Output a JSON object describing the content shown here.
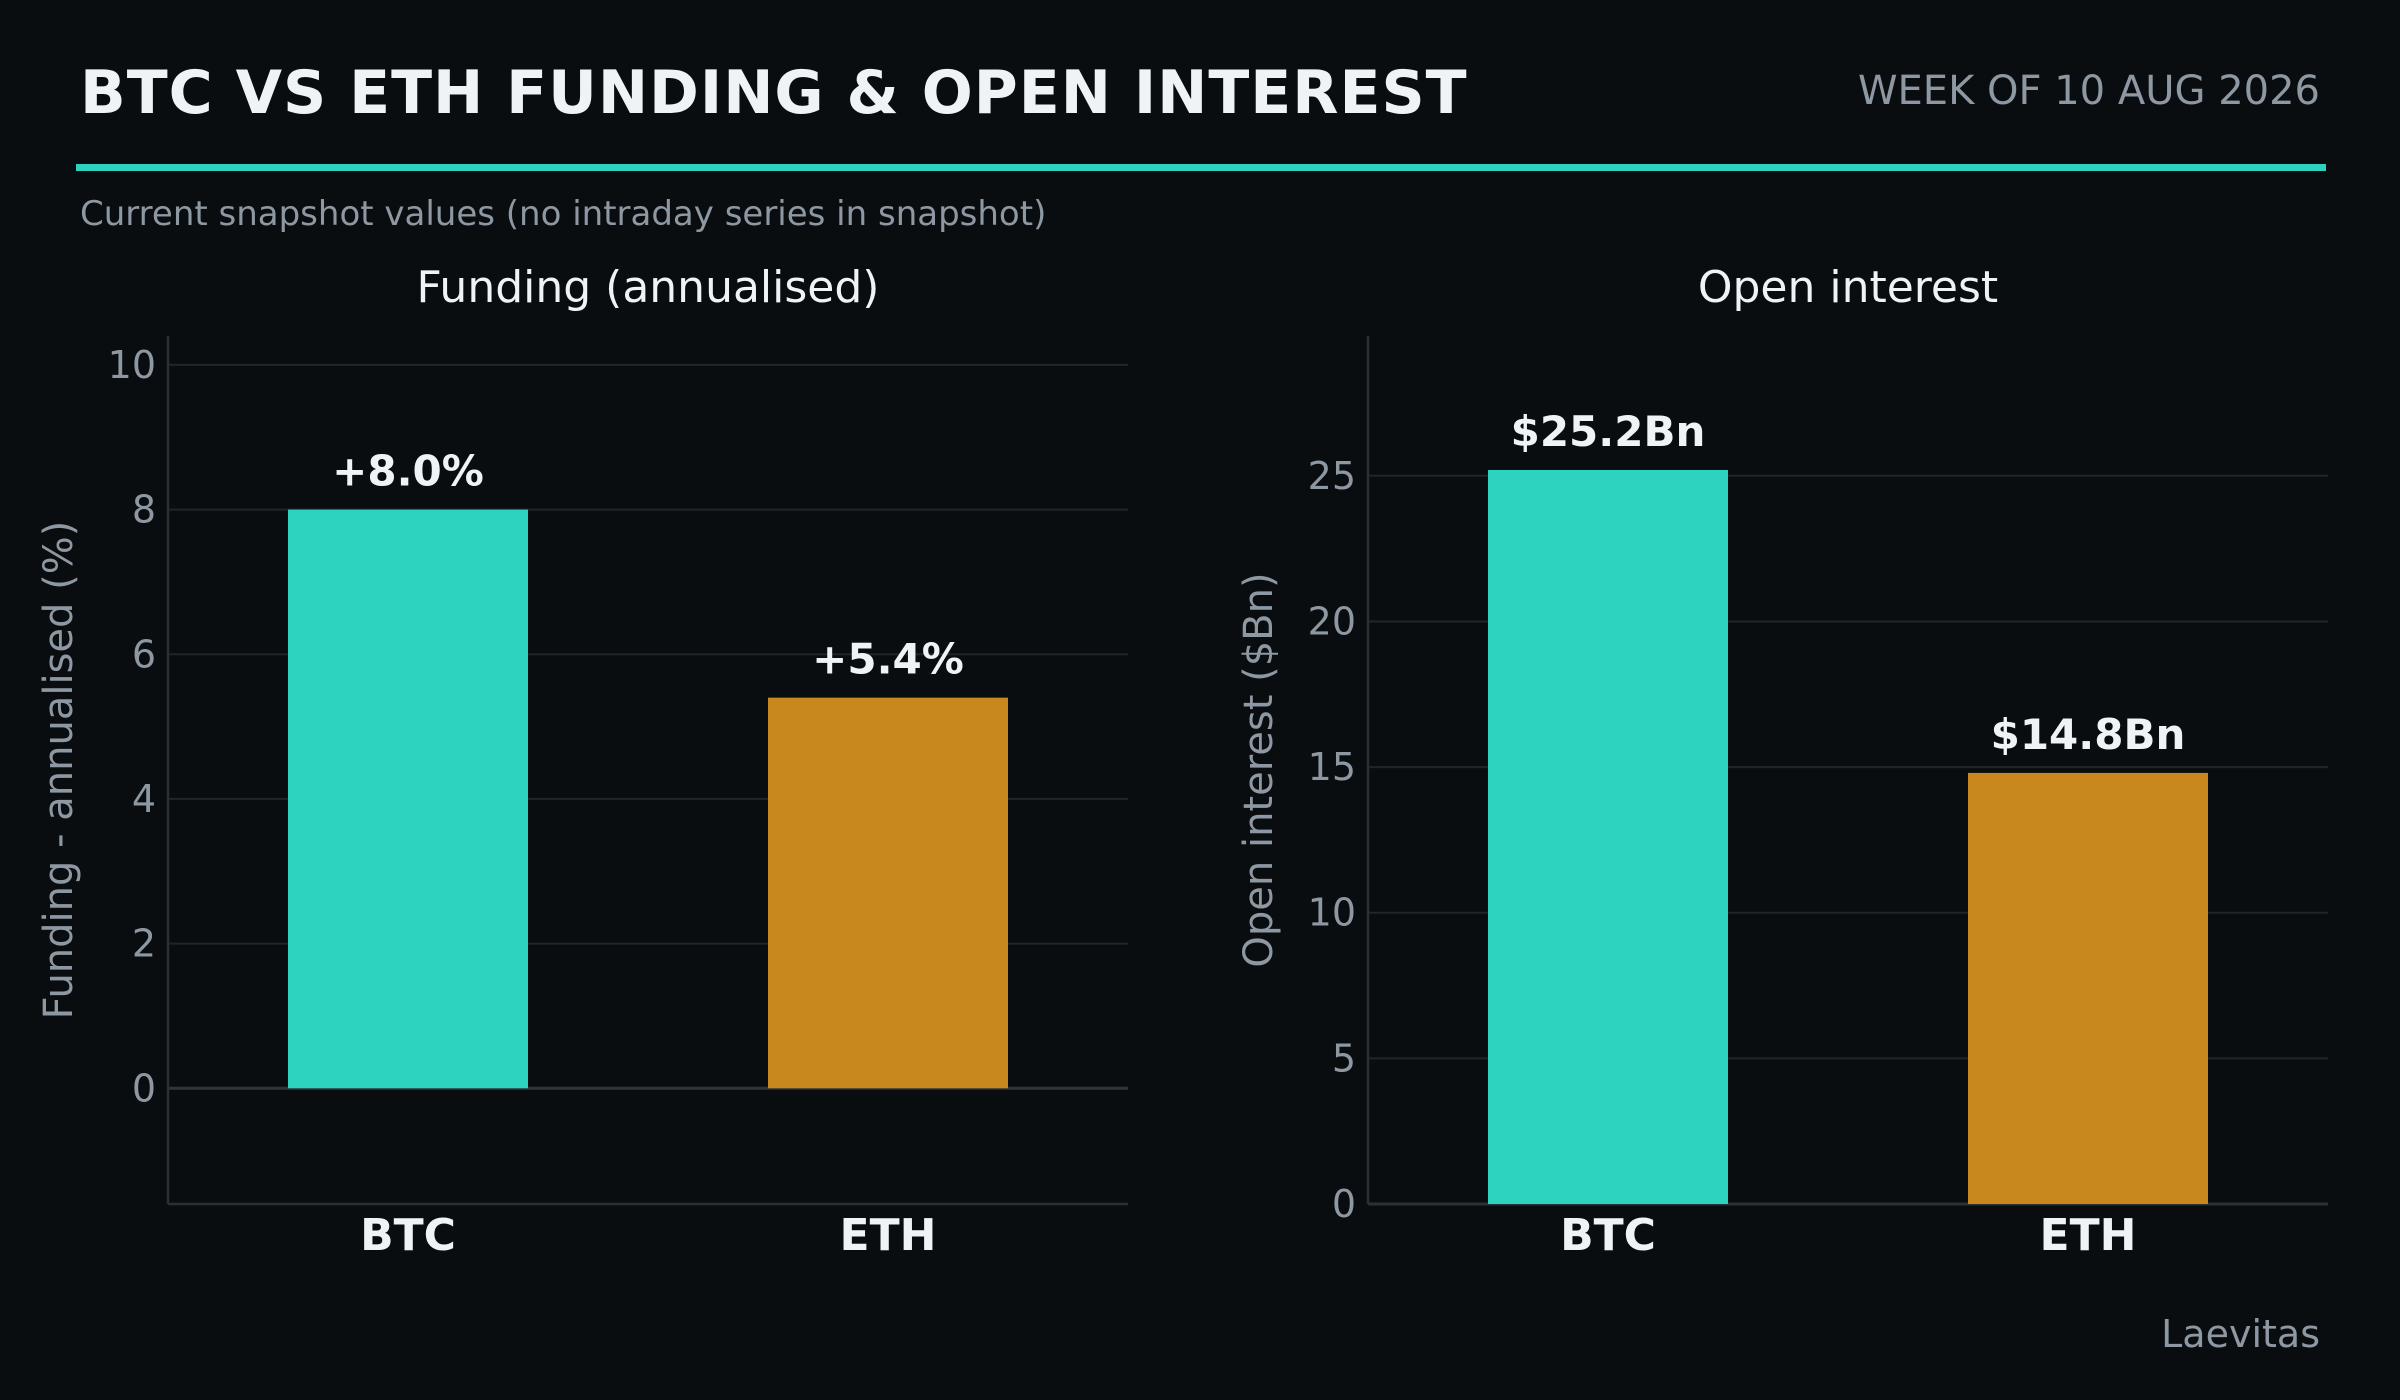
{
  "header": {
    "title": "BTC VS ETH FUNDING & OPEN INTEREST",
    "week": "WEEK OF 10 AUG 2026",
    "subtitle": "Current snapshot values (no intraday series in snapshot)"
  },
  "footer": {
    "source": "Laevitas"
  },
  "colors": {
    "btc": "#2ed3c0",
    "eth": "#c8881e",
    "accent": "#2ed3c0"
  },
  "chart_data": [
    {
      "type": "bar",
      "title": "Funding (annualised)",
      "ylabel": "Funding - annualised (%)",
      "xlabel": "",
      "categories": [
        "BTC",
        "ETH"
      ],
      "values": [
        8.0,
        5.4
      ],
      "data_labels": [
        "+8.0%",
        "+5.4%"
      ],
      "colors": [
        "#2ed3c0",
        "#c8881e"
      ],
      "ylim": [
        -1.6,
        10.4
      ],
      "yticks": [
        0,
        2,
        4,
        6,
        8,
        10
      ],
      "grid": true
    },
    {
      "type": "bar",
      "title": "Open interest",
      "ylabel": "Open interest ($Bn)",
      "xlabel": "",
      "categories": [
        "BTC",
        "ETH"
      ],
      "values": [
        25.2,
        14.8
      ],
      "data_labels": [
        "$25.2Bn",
        "$14.8Bn"
      ],
      "colors": [
        "#2ed3c0",
        "#c8881e"
      ],
      "ylim": [
        0,
        29.8
      ],
      "yticks": [
        0,
        5,
        10,
        15,
        20,
        25
      ],
      "grid": true
    }
  ]
}
